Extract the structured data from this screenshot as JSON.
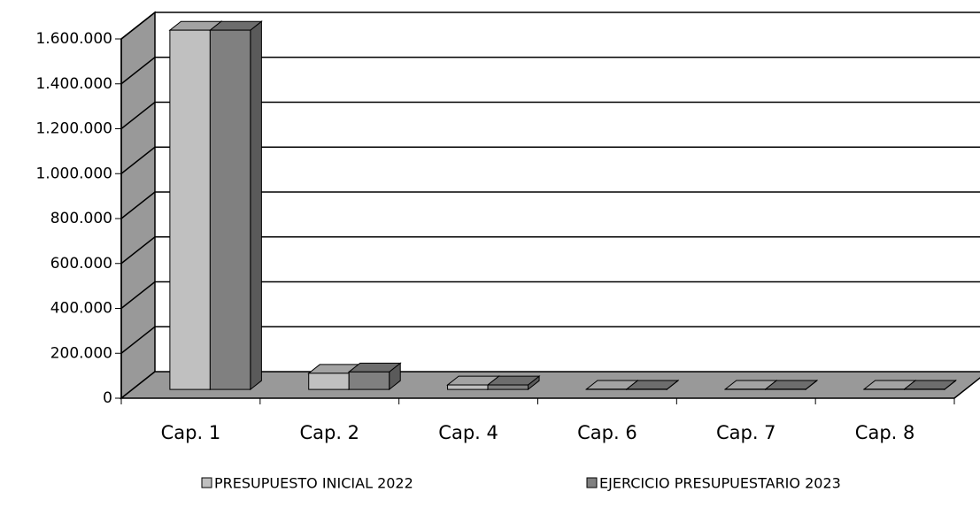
{
  "chart_data": {
    "type": "bar3d",
    "categories": [
      "Cap. 1",
      "Cap. 2",
      "Cap. 4",
      "Cap. 6",
      "Cap. 7",
      "Cap. 8"
    ],
    "series": [
      {
        "name": "PRESUPUESTO INICIAL 2022",
        "color": "#c0c0c0",
        "values": [
          1600000,
          72000,
          20000,
          1000,
          1000,
          1000
        ]
      },
      {
        "name": "EJERCICIO PRESUPUESTARIO 2023",
        "color": "#808080",
        "values": [
          1600000,
          78000,
          20000,
          1000,
          1000,
          1000
        ]
      }
    ],
    "ylim": [
      0,
      1600000
    ],
    "yticks": [
      0,
      {
        "value": 200000,
        "label": "200.000"
      },
      {
        "value": 400000,
        "label": "400.000"
      },
      {
        "value": 600000,
        "label": "600.000"
      },
      {
        "value": 800000,
        "label": "800.000"
      },
      {
        "value": 1000000,
        "label": "1.000.000"
      },
      {
        "value": 1200000,
        "label": "1.200.000"
      },
      {
        "value": 1400000,
        "label": "1.400.000"
      },
      {
        "value": 1600000,
        "label": "1.600.000"
      }
    ],
    "grid": true,
    "legend": "bottom"
  }
}
